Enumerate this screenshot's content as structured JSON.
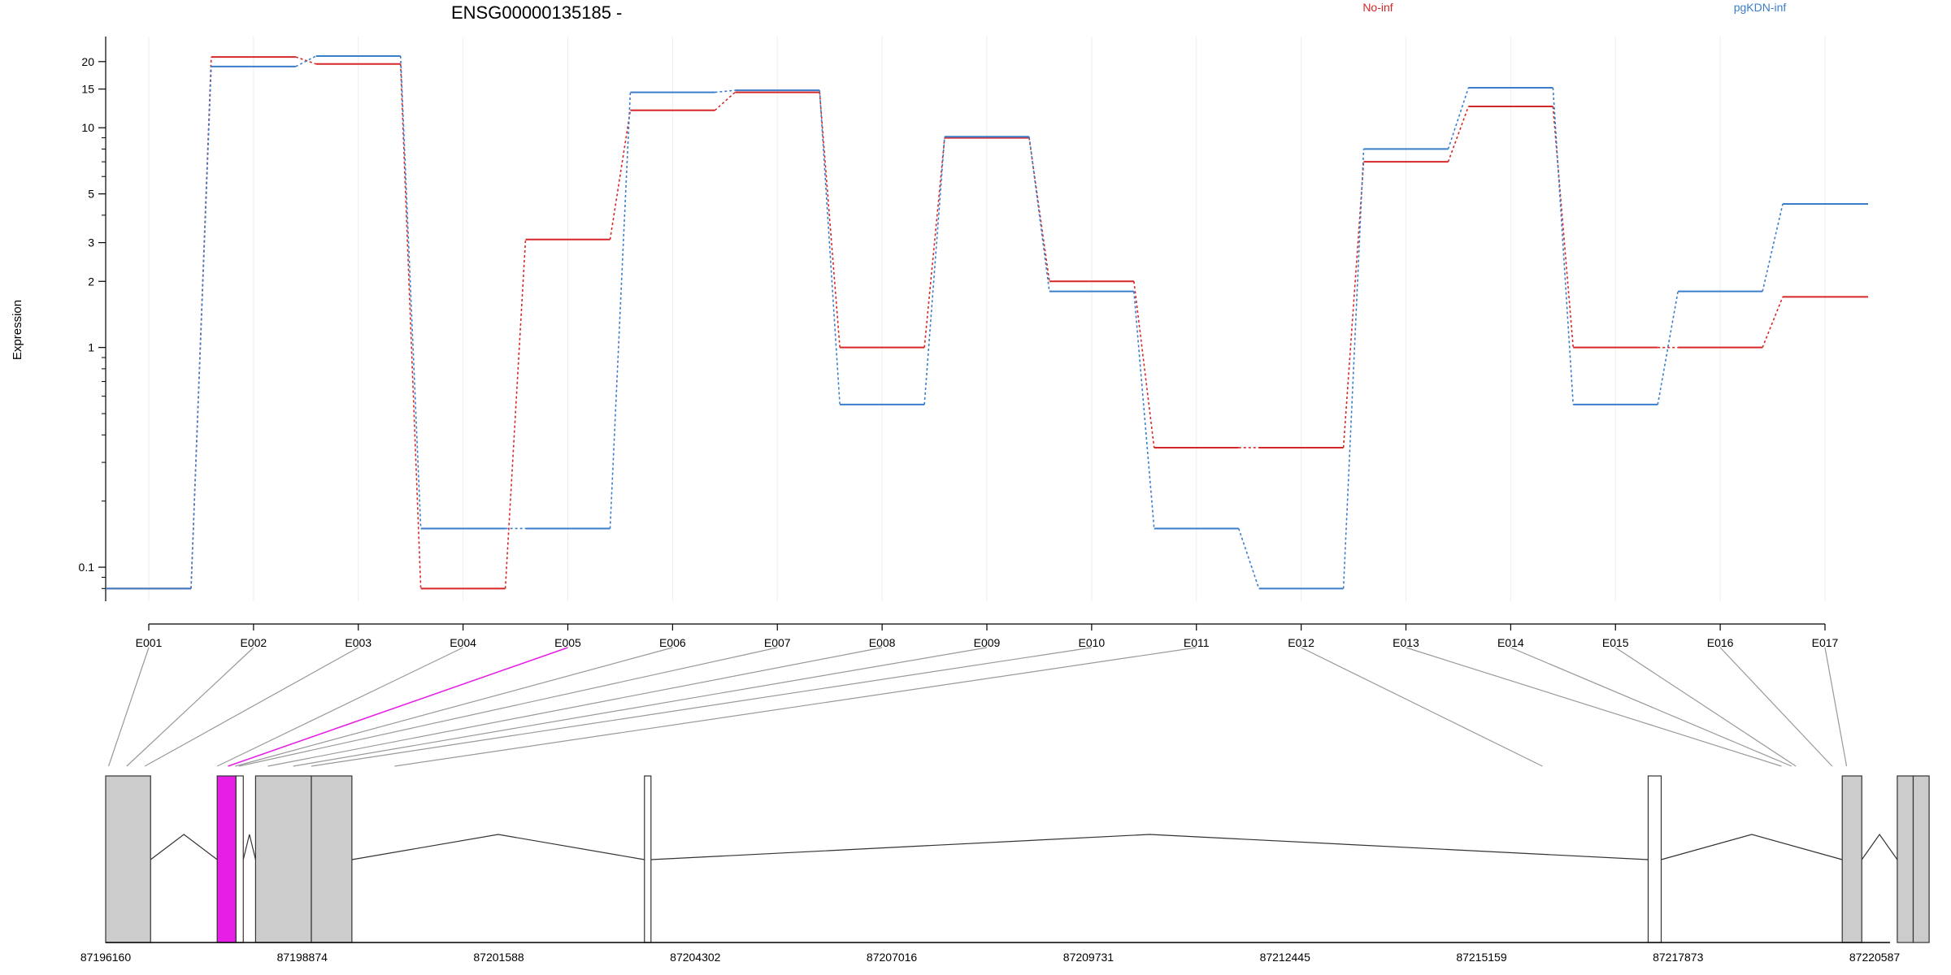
{
  "chart_data": {
    "type": "line",
    "title": "ENSG00000135185 -",
    "ylabel": "Expression",
    "yscale": "log",
    "ylim": [
      0.07,
      26
    ],
    "yticks": [
      {
        "value": 0.1,
        "label": "0.1"
      },
      {
        "value": 1,
        "label": "1"
      },
      {
        "value": 2,
        "label": "2"
      },
      {
        "value": 3,
        "label": "3"
      },
      {
        "value": 5,
        "label": "5"
      },
      {
        "value": 10,
        "label": "10"
      },
      {
        "value": 15,
        "label": "15"
      },
      {
        "value": 20,
        "label": "20"
      }
    ],
    "categories": [
      "E001",
      "E002",
      "E003",
      "E004",
      "E005",
      "E006",
      "E007",
      "E008",
      "E009",
      "E010",
      "E011",
      "E012",
      "E013",
      "E014",
      "E015",
      "E016",
      "E017"
    ],
    "series": [
      {
        "name": "No-inf",
        "color": "#d62728",
        "values": [
          0.08,
          21.0,
          19.5,
          0.08,
          3.1,
          12.0,
          14.5,
          1.0,
          9.0,
          2.0,
          0.35,
          0.35,
          7.0,
          12.5,
          1.0,
          1.0,
          1.7
        ]
      },
      {
        "name": "pgKDN-inf",
        "color": "#3a7dc9",
        "values": [
          0.08,
          19.0,
          21.2,
          0.15,
          0.15,
          14.5,
          14.8,
          0.55,
          9.1,
          1.8,
          0.15,
          0.08,
          8.0,
          15.2,
          0.55,
          1.8,
          4.5
        ]
      }
    ],
    "grid": "vertical-light",
    "legend": "top",
    "gene_model": {
      "xlim": [
        87196160,
        87220800
      ],
      "coord_ticks": [
        87196160,
        87198874,
        87201588,
        87204302,
        87207016,
        87209731,
        87212445,
        87215159,
        87217873,
        87220587
      ],
      "exon_genomic_positions": [
        87196200,
        87196450,
        87196700,
        87197700,
        87197850,
        87197950,
        87198000,
        87198400,
        87198750,
        87199000,
        87200150,
        87216000,
        87219300,
        87219440,
        87219500,
        87220000,
        87220200
      ],
      "highlighted_exon": "E005",
      "highlight_color": "#e61ee6",
      "exon_color": "#cccccc",
      "exon_blocks": [
        {
          "start": 87196160,
          "end": 87196780,
          "filled": true
        },
        {
          "start": 87197700,
          "end": 87197960,
          "filled": true,
          "highlight": true
        },
        {
          "start": 87197960,
          "end": 87198060,
          "filled": false
        },
        {
          "start": 87198230,
          "end": 87199000,
          "filled": true
        },
        {
          "start": 87199000,
          "end": 87199560,
          "filled": true
        },
        {
          "start": 87203600,
          "end": 87203690,
          "filled": false
        },
        {
          "start": 87217460,
          "end": 87217640,
          "filled": false
        },
        {
          "start": 87220140,
          "end": 87220410,
          "filled": true
        },
        {
          "start": 87220900,
          "end": 87221120,
          "filled": true
        },
        {
          "start": 87221120,
          "end": 87221340,
          "filled": true
        }
      ],
      "introns": [
        [
          87196780,
          87197700
        ],
        [
          87198060,
          87198230
        ],
        [
          87199560,
          87203600
        ],
        [
          87203690,
          87217460
        ],
        [
          87217640,
          87220140
        ],
        [
          87220410,
          87220900
        ]
      ]
    }
  }
}
